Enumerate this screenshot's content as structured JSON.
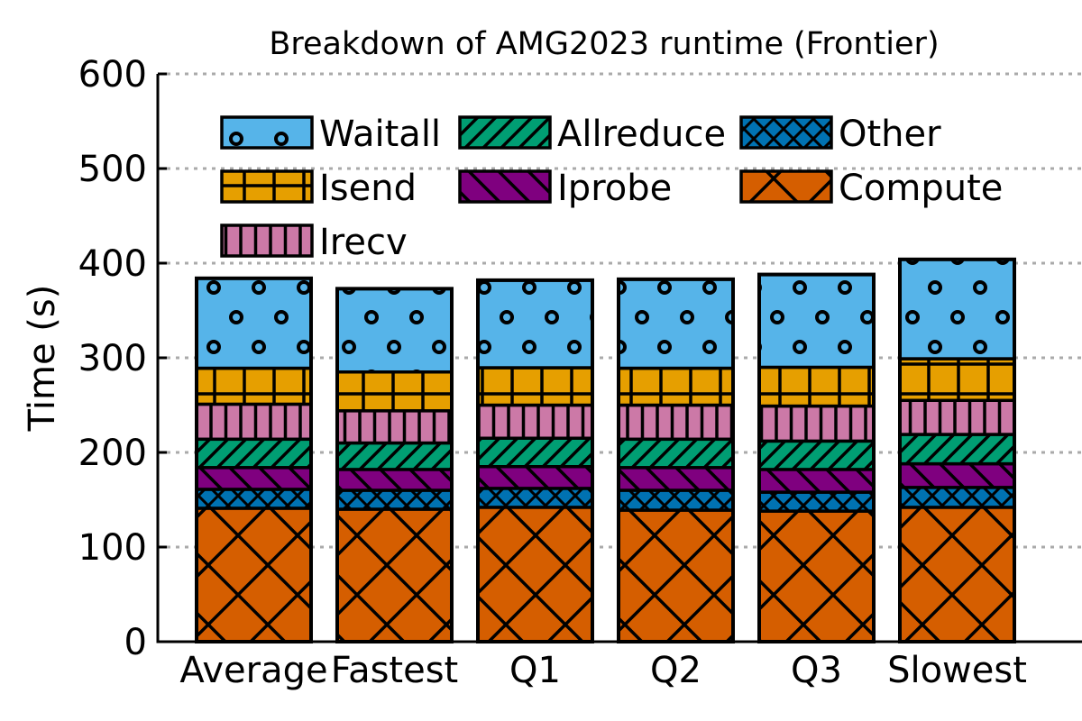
{
  "chart_data": {
    "type": "bar",
    "stacked": true,
    "title": "Breakdown of AMG2023 runtime (Frontier)",
    "xlabel": "",
    "ylabel": "Time (s)",
    "ylim": [
      0,
      600
    ],
    "yticks": [
      0,
      100,
      200,
      300,
      400,
      500,
      600
    ],
    "grid": "horizontal dotted",
    "legend_position": "top-left",
    "categories": [
      "Average",
      "Fastest",
      "Q1",
      "Q2",
      "Q3",
      "Slowest"
    ],
    "series": [
      {
        "name": "Compute",
        "color": "#d55e00",
        "pattern": "large-cross-hatch",
        "values": [
          141,
          140,
          142,
          139,
          138,
          142
        ]
      },
      {
        "name": "Other",
        "color": "#0072b2",
        "pattern": "small-cross-hatch",
        "values": [
          20,
          20,
          20,
          21,
          20,
          21
        ]
      },
      {
        "name": "Iprobe",
        "color": "#7f007f",
        "pattern": "back-diagonal",
        "values": [
          23,
          22,
          23,
          24,
          24,
          25
        ]
      },
      {
        "name": "Allreduce",
        "color": "#009e73",
        "pattern": "forward-diagonal",
        "values": [
          30,
          28,
          30,
          30,
          30,
          31
        ]
      },
      {
        "name": "Irecv",
        "color": "#cc79a7",
        "pattern": "vertical-lines",
        "values": [
          37,
          34,
          35,
          36,
          37,
          36
        ]
      },
      {
        "name": "Isend",
        "color": "#e69f00",
        "pattern": "grid",
        "values": [
          38,
          41,
          39.5,
          39,
          41,
          44
        ]
      },
      {
        "name": "Waitall",
        "color": "#56b4e9",
        "pattern": "circles",
        "values": [
          95,
          88,
          92.5,
          94,
          98,
          105
        ]
      }
    ],
    "legend_order": [
      "Waitall",
      "Allreduce",
      "Other",
      "Isend",
      "Iprobe",
      "Compute",
      "Irecv"
    ]
  }
}
